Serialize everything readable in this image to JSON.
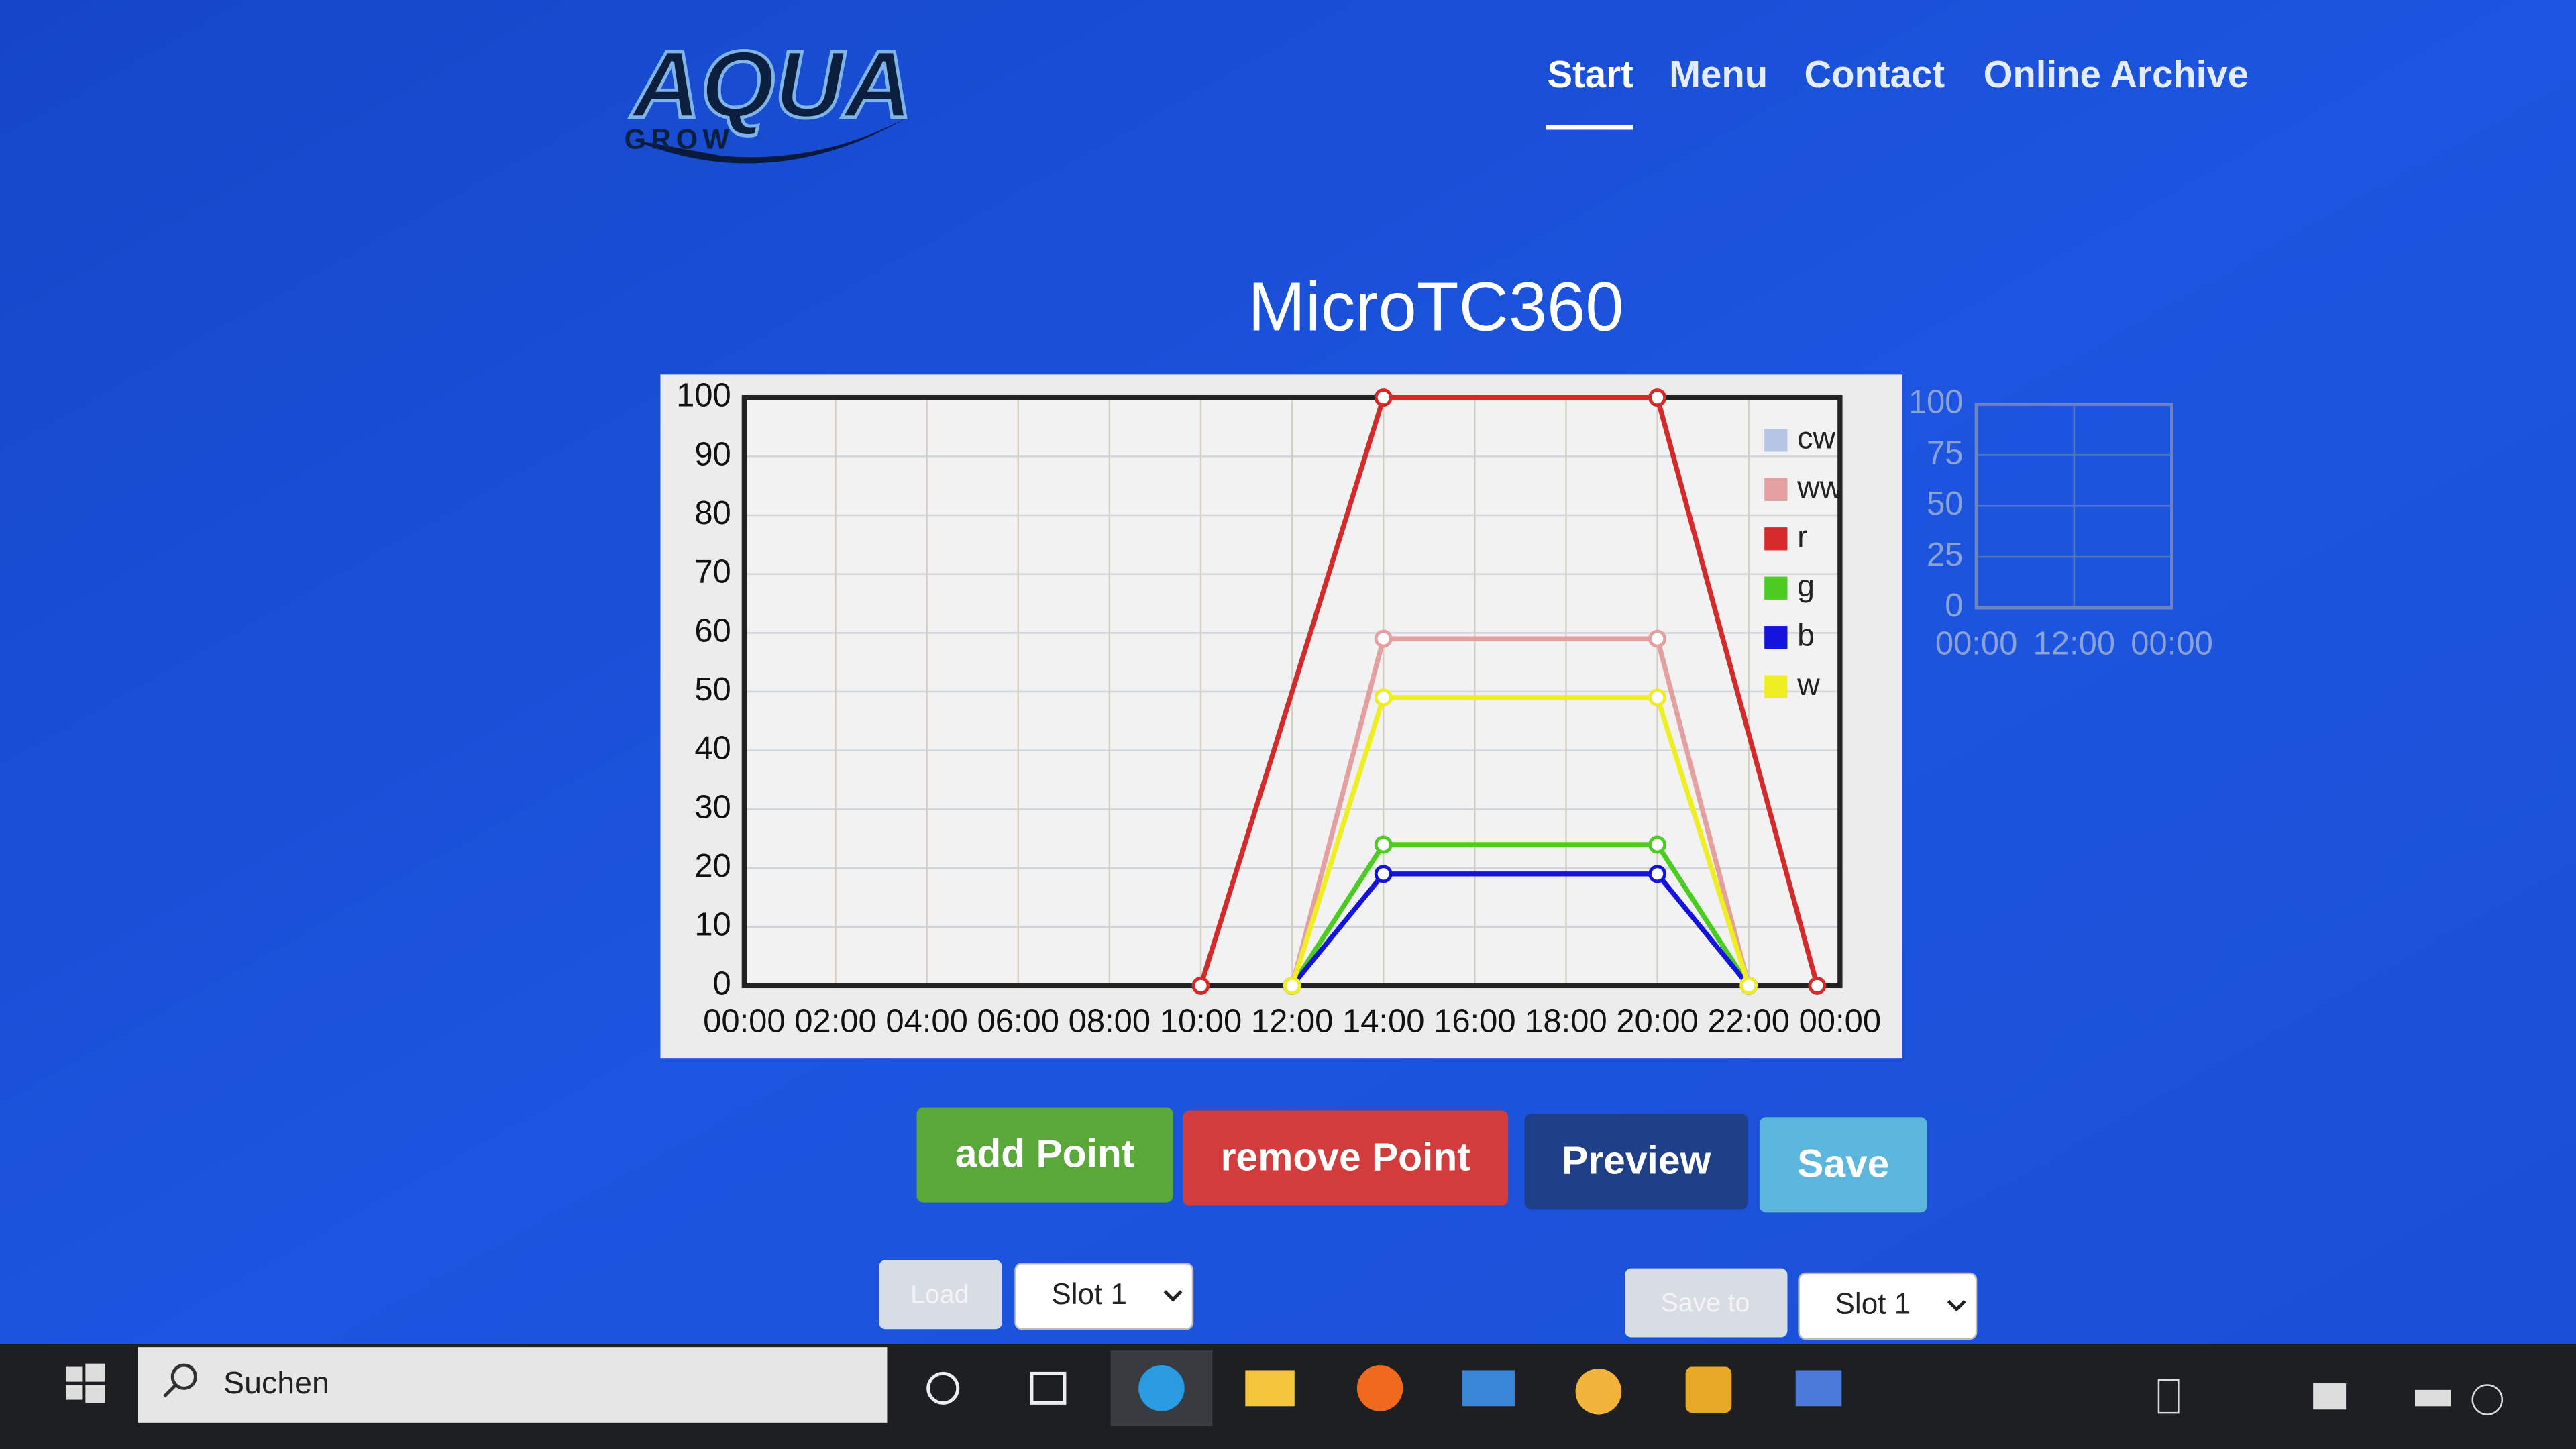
{
  "header": {
    "logo_main": "AQUA",
    "logo_sub": "GROW"
  },
  "nav": [
    "Start",
    "Menu",
    "Contact",
    "Online Archive"
  ],
  "title": "MicroTC360",
  "chart_data": [
    {
      "type": "line",
      "xlim": [
        0,
        24
      ],
      "xticks": [
        {
          "value": 0,
          "label": "00:00"
        },
        {
          "value": 2,
          "label": "02:00"
        },
        {
          "value": 4,
          "label": "04:00"
        },
        {
          "value": 6,
          "label": "06:00"
        },
        {
          "value": 8,
          "label": "08:00"
        },
        {
          "value": 10,
          "label": "10:00"
        },
        {
          "value": 12,
          "label": "12:00"
        },
        {
          "value": 14,
          "label": "14:00"
        },
        {
          "value": 16,
          "label": "16:00"
        },
        {
          "value": 18,
          "label": "18:00"
        },
        {
          "value": 20,
          "label": "20:00"
        },
        {
          "value": 22,
          "label": "22:00"
        },
        {
          "value": 24,
          "label": "00:00"
        }
      ],
      "ylim": [
        0,
        100
      ],
      "yticks": [
        0,
        10,
        20,
        30,
        40,
        50,
        60,
        70,
        80,
        90,
        100
      ],
      "grid": true,
      "legend": "top-right",
      "series": [
        {
          "name": "cw",
          "color": "#b4c6e4",
          "x": [],
          "values": []
        },
        {
          "name": "ww",
          "color": "#e4a0a0",
          "x": [
            12,
            14,
            20,
            22
          ],
          "values": [
            0,
            59,
            59,
            0
          ]
        },
        {
          "name": "r",
          "color": "#d42a2a",
          "x": [
            10,
            14,
            20,
            23.5
          ],
          "values": [
            0,
            100,
            100,
            0
          ]
        },
        {
          "name": "g",
          "color": "#4ccc22",
          "x": [
            12,
            14,
            20,
            22
          ],
          "values": [
            0,
            24,
            24,
            0
          ]
        },
        {
          "name": "b",
          "color": "#1414dc",
          "x": [
            12,
            14,
            20,
            22
          ],
          "values": [
            0,
            19,
            19,
            0
          ]
        },
        {
          "name": "w",
          "color": "#eeee22",
          "x": [
            12,
            14,
            20,
            22
          ],
          "values": [
            0,
            49,
            49,
            0
          ]
        }
      ]
    },
    {
      "type": "line",
      "xlim": [
        0,
        24
      ],
      "xticks": [
        {
          "value": 0,
          "label": "00:00"
        },
        {
          "value": 12,
          "label": "12:00"
        },
        {
          "value": 24,
          "label": "00:00"
        }
      ],
      "ylim": [
        0,
        100
      ],
      "yticks": [
        0,
        25,
        50,
        75,
        100
      ],
      "grid": true,
      "series": []
    }
  ],
  "buttons": [
    "add Point",
    "remove Point",
    "Preview",
    "Save"
  ],
  "controls": {
    "load": "Load",
    "load_slot": "Slot 1",
    "save_to": "Save to",
    "save_slot": "Slot 1"
  },
  "taskbar": {
    "search": "Suchen"
  }
}
